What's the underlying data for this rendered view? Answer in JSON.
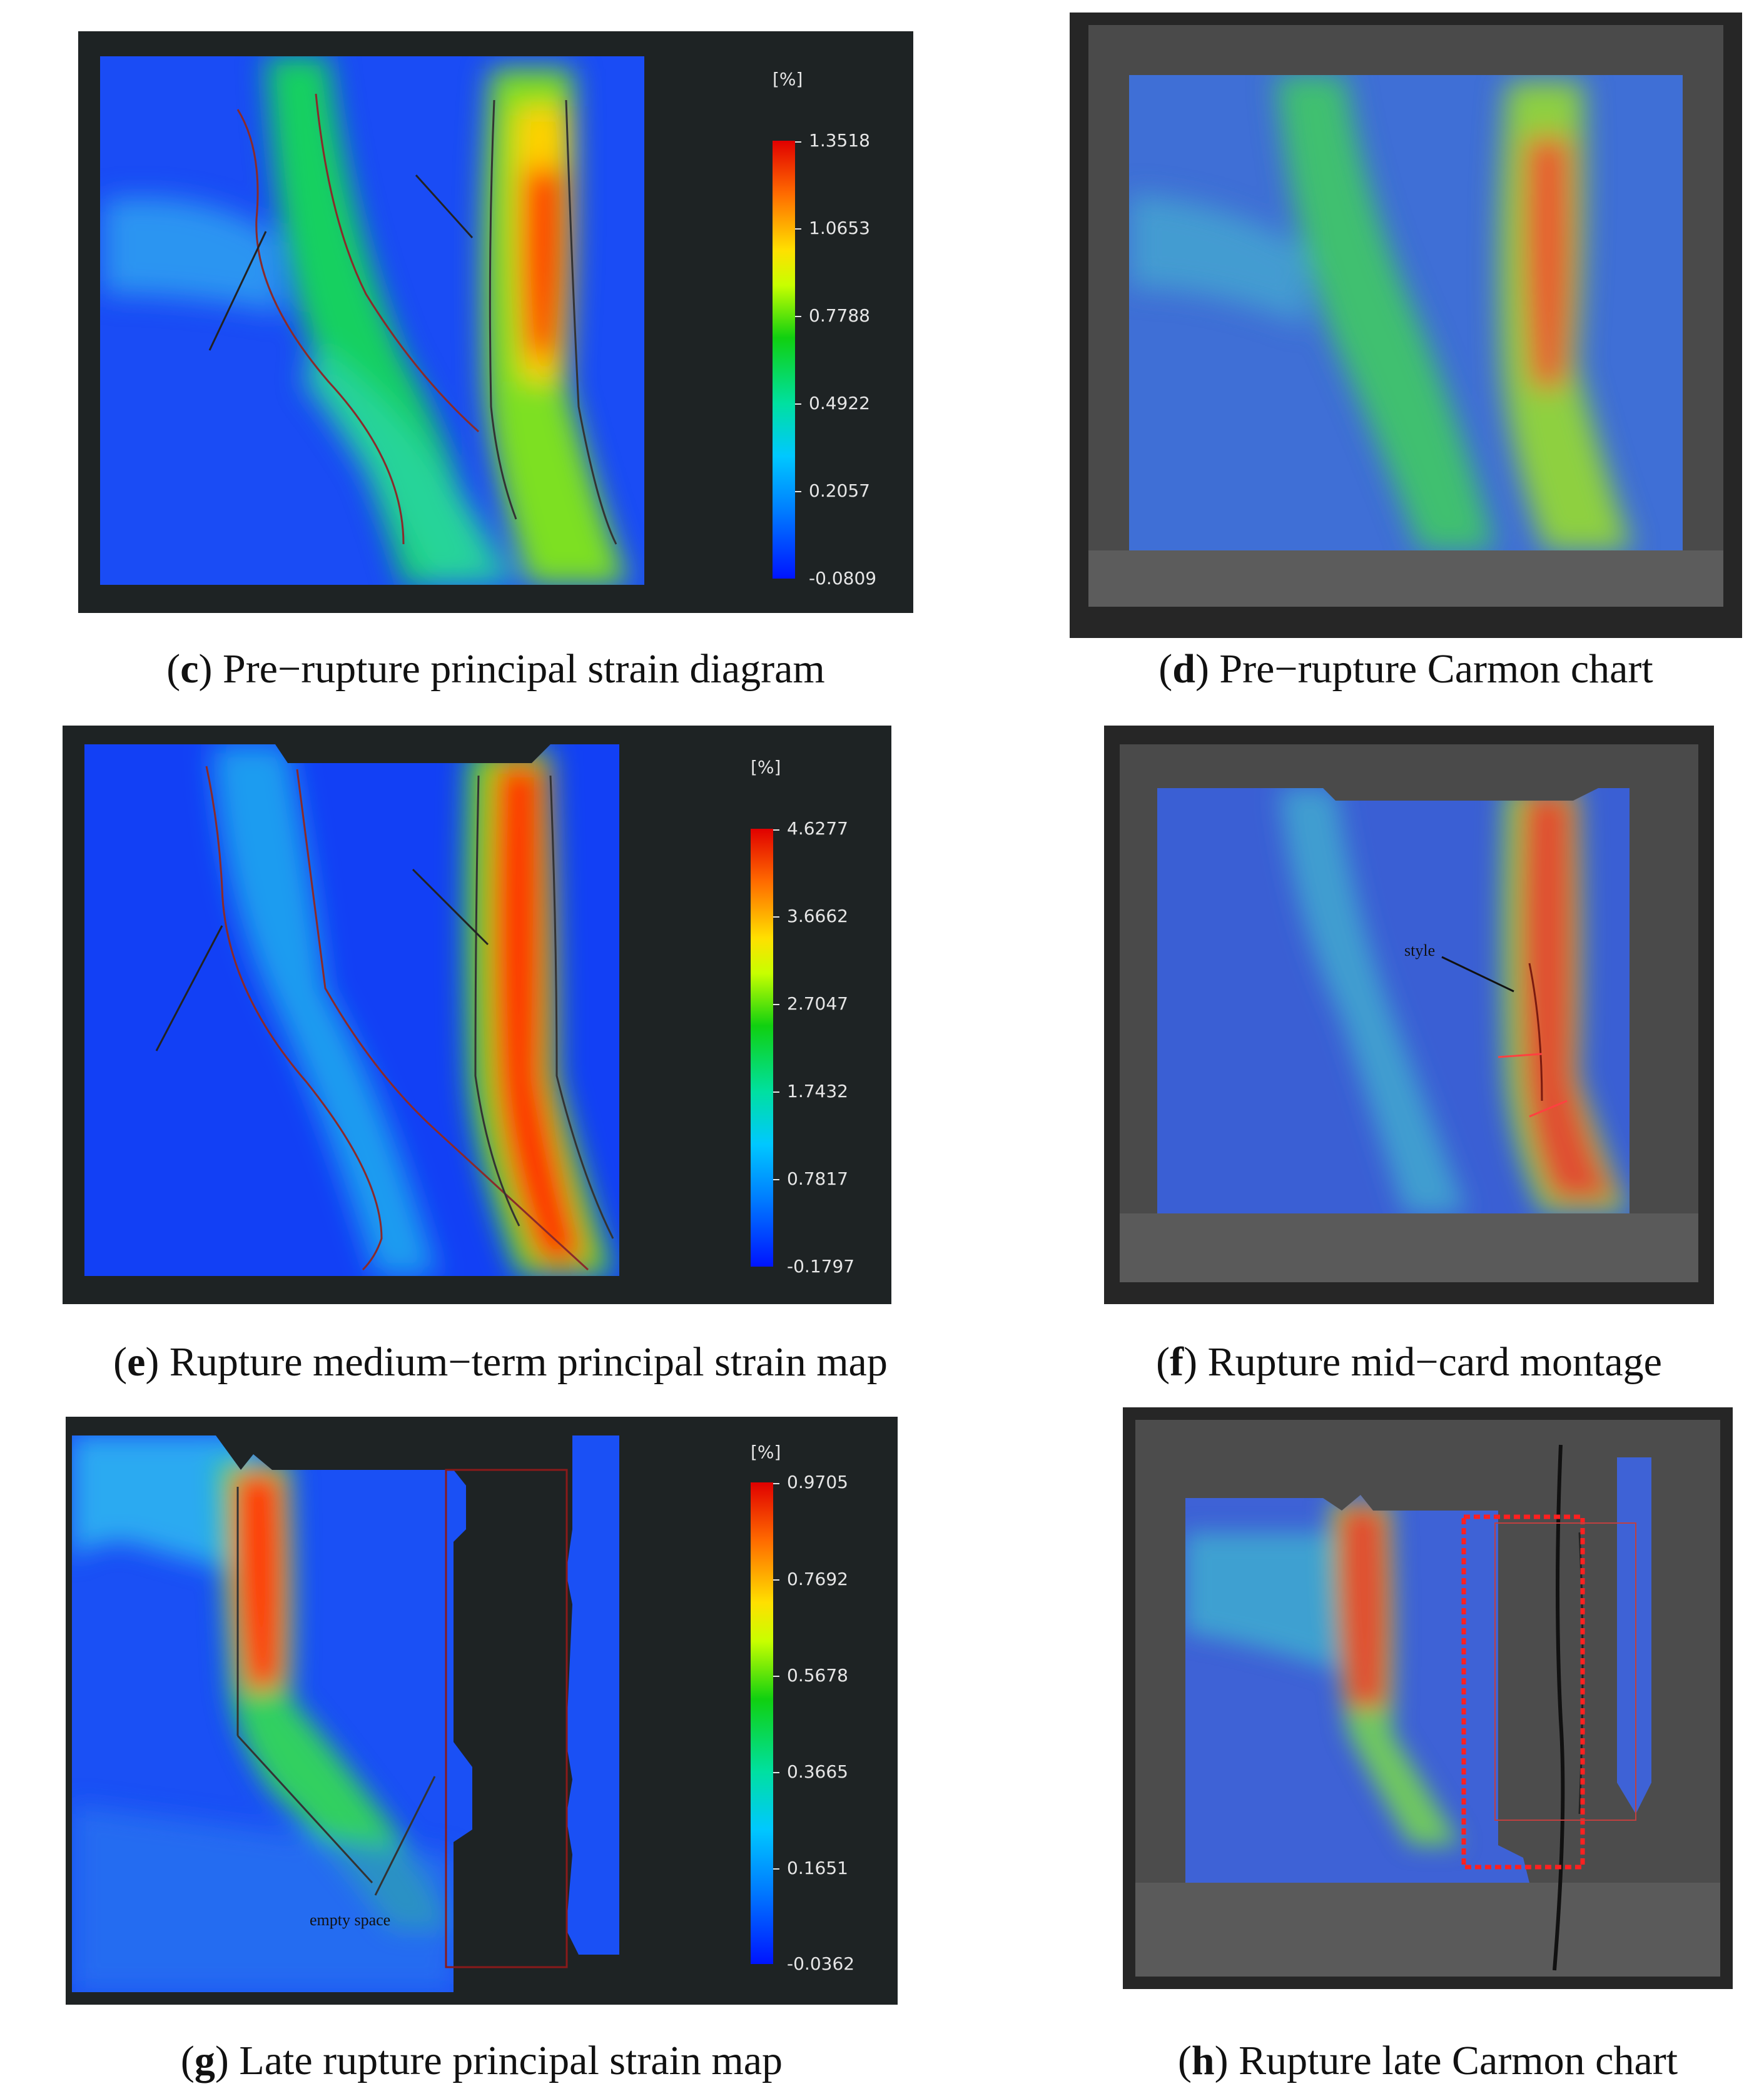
{
  "panels": {
    "c": {
      "letter": "c",
      "caption": " Pre−rupture principal strain diagram",
      "colorbar": {
        "unit": "[%]",
        "ticks": [
          "1.3518",
          "1.0653",
          "0.7788",
          "0.4922",
          "0.2057",
          "-0.0809"
        ]
      }
    },
    "d": {
      "letter": "d",
      "caption": " Pre−rupture Carmon chart"
    },
    "e": {
      "letter": "e",
      "caption": " Rupture medium−term principal strain map",
      "colorbar": {
        "unit": "[%]",
        "ticks": [
          "4.6277",
          "3.6662",
          "2.7047",
          "1.7432",
          "0.7817",
          "-0.1797"
        ]
      }
    },
    "f": {
      "letter": "f",
      "caption": " Rupture mid−card montage",
      "annotation": "style"
    },
    "g": {
      "letter": "g",
      "caption": " Late rupture principal strain map",
      "colorbar": {
        "unit": "[%]",
        "ticks": [
          "0.9705",
          "0.7692",
          "0.5678",
          "0.3665",
          "0.1651",
          "-0.0362"
        ]
      },
      "annotation": "empty space"
    },
    "h": {
      "letter": "h",
      "caption": " Rupture late Carmon chart"
    }
  },
  "colors": {
    "strain_low": "#0a3cff",
    "strain_mid": "#10d010",
    "strain_high": "#ff1a00",
    "panel_background": "#1e2324"
  }
}
